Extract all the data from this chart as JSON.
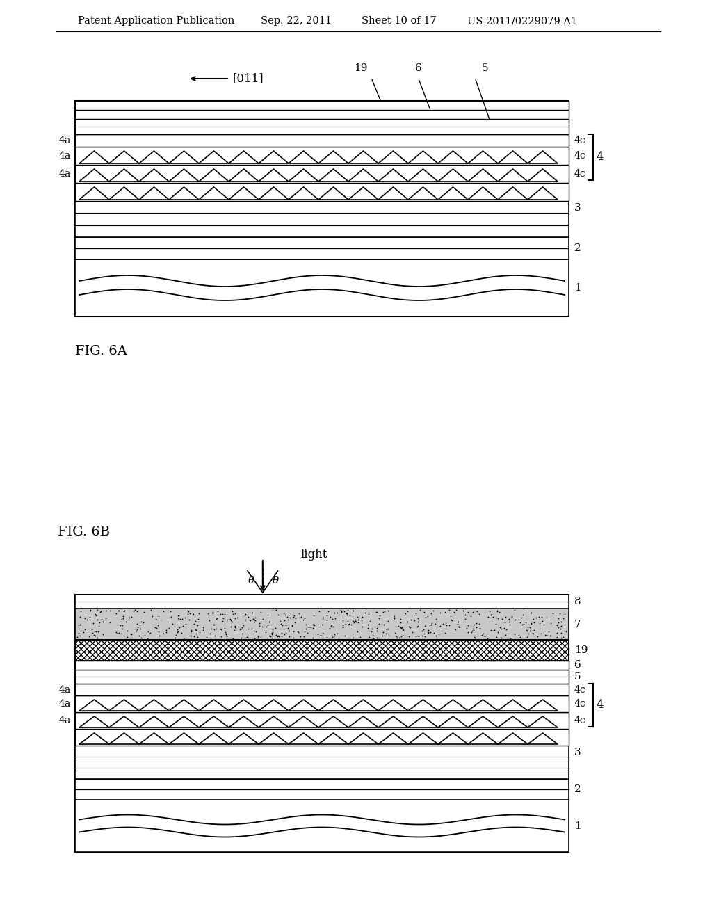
{
  "bg_color": "#ffffff",
  "header_text": "Patent Application Publication",
  "header_date": "Sep. 22, 2011",
  "header_sheet": "Sheet 10 of 17",
  "header_patent": "US 2011/0229079 A1",
  "fig6a_label": "FIG. 6A",
  "fig6b_label": "FIG. 6B",
  "direction_label": "[011]"
}
